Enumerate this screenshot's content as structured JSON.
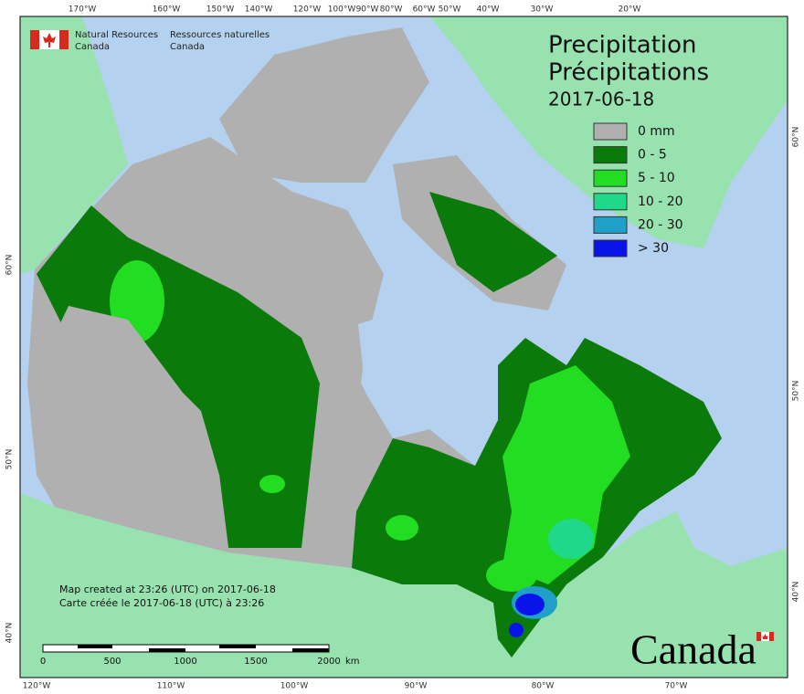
{
  "header": {
    "org_en": [
      "Natural Resources",
      "Canada"
    ],
    "org_fr": [
      "Ressources naturelles",
      "Canada"
    ]
  },
  "title": {
    "en": "Precipitation",
    "fr": "Précipitations",
    "date": "2017-06-18"
  },
  "legend": [
    {
      "label": "0 mm",
      "color": "#b0b0b0"
    },
    {
      "label": "0 - 5",
      "color": "#0a7a0a"
    },
    {
      "label": "5 - 10",
      "color": "#22dd22"
    },
    {
      "label": "10 - 20",
      "color": "#1fd88a"
    },
    {
      "label": "20 - 30",
      "color": "#20a0c8"
    },
    {
      "label": "> 30",
      "color": "#0a14e8"
    }
  ],
  "top_labels": [
    "170°W",
    "160°W",
    "150°W",
    "140°W",
    "120°W",
    "100°W",
    "90°W",
    "80°W",
    "60°W",
    "50°W",
    "40°W",
    "30°W",
    "20°W"
  ],
  "bottom_labels": [
    "120°W",
    "110°W",
    "100°W",
    "90°W",
    "80°W",
    "70°W"
  ],
  "left_labels": [
    "60°N",
    "50°N",
    "40°N"
  ],
  "right_labels": [
    "60°N",
    "50°N",
    "40°N"
  ],
  "notes": [
    "Map created at 23:26 (UTC) on 2017-06-18",
    "Carte créée le 2017-06-18 (UTC) à 23:26"
  ],
  "scale": {
    "labels": [
      "0",
      "500",
      "1000",
      "1500",
      "2000"
    ],
    "unit": "km"
  },
  "wordmark": "Canada"
}
